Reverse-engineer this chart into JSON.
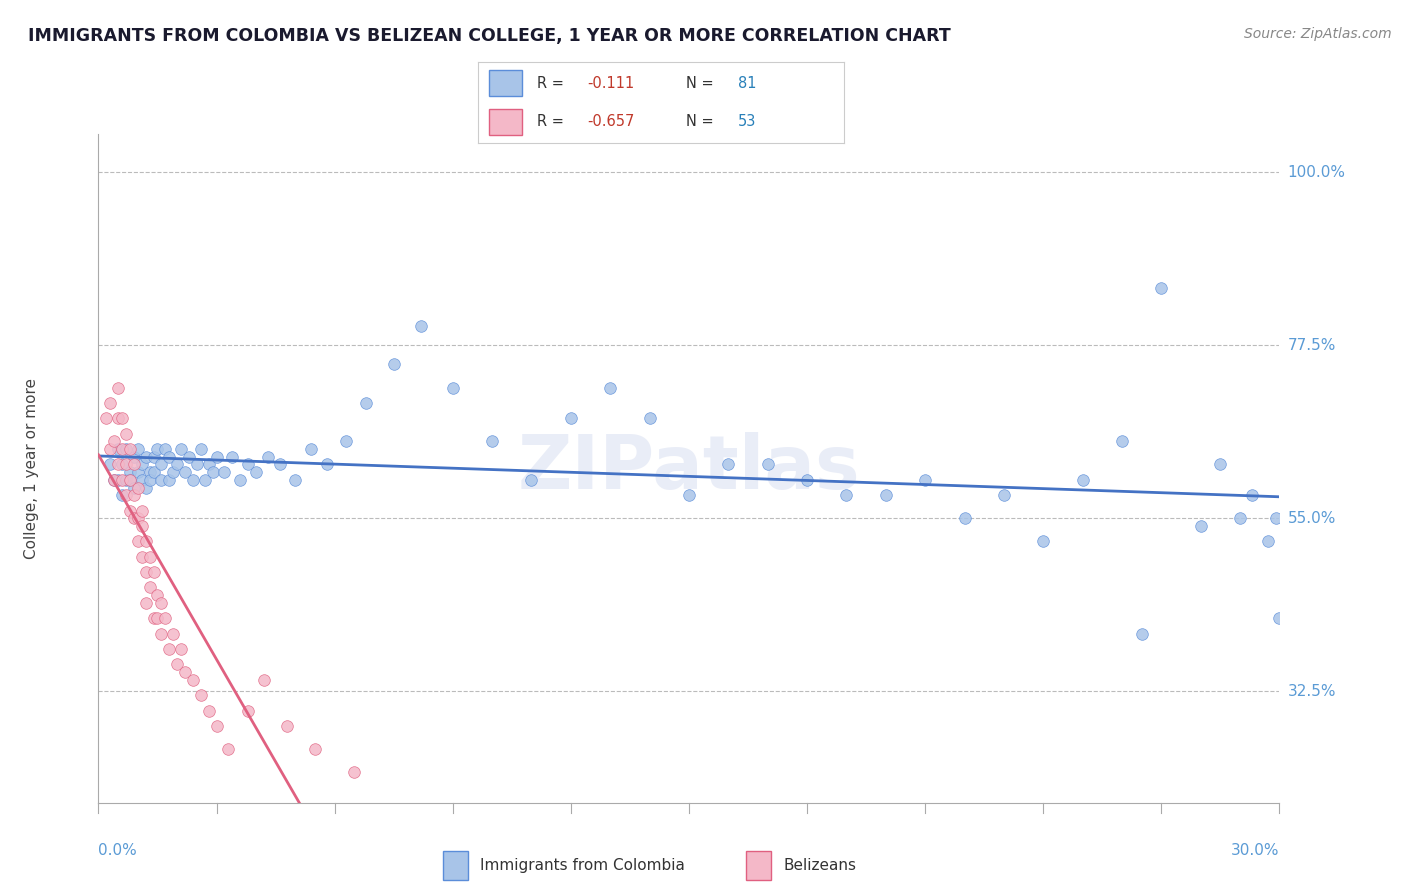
{
  "title": "IMMIGRANTS FROM COLOMBIA VS BELIZEAN COLLEGE, 1 YEAR OR MORE CORRELATION CHART",
  "source_text": "Source: ZipAtlas.com",
  "ylabel": "College, 1 year or more",
  "xlim": [
    0.0,
    0.3
  ],
  "ylim": [
    0.18,
    1.05
  ],
  "yticks": [
    0.325,
    0.55,
    0.775,
    1.0
  ],
  "ytick_labels": [
    "32.5%",
    "55.0%",
    "77.5%",
    "100.0%"
  ],
  "xtick_left_label": "0.0%",
  "xtick_right_label": "30.0%",
  "watermark": "ZIPatlas",
  "series": [
    {
      "label": "Immigrants from Colombia",
      "R": -0.111,
      "N": 81,
      "color": "#a8c4e8",
      "edge_color": "#5b8dd9",
      "trend_color": "#4472c4",
      "x": [
        0.003,
        0.004,
        0.005,
        0.005,
        0.006,
        0.006,
        0.007,
        0.007,
        0.008,
        0.008,
        0.009,
        0.009,
        0.01,
        0.01,
        0.011,
        0.011,
        0.012,
        0.012,
        0.013,
        0.013,
        0.014,
        0.014,
        0.015,
        0.016,
        0.016,
        0.017,
        0.018,
        0.018,
        0.019,
        0.02,
        0.021,
        0.022,
        0.023,
        0.024,
        0.025,
        0.026,
        0.027,
        0.028,
        0.029,
        0.03,
        0.032,
        0.034,
        0.036,
        0.038,
        0.04,
        0.043,
        0.046,
        0.05,
        0.054,
        0.058,
        0.063,
        0.068,
        0.075,
        0.082,
        0.09,
        0.1,
        0.11,
        0.12,
        0.13,
        0.14,
        0.15,
        0.16,
        0.17,
        0.18,
        0.19,
        0.2,
        0.21,
        0.22,
        0.23,
        0.24,
        0.25,
        0.26,
        0.265,
        0.27,
        0.28,
        0.285,
        0.29,
        0.293,
        0.297,
        0.299,
        0.3
      ],
      "y": [
        0.62,
        0.6,
        0.64,
        0.6,
        0.58,
        0.62,
        0.6,
        0.64,
        0.61,
        0.6,
        0.63,
        0.59,
        0.61,
        0.64,
        0.6,
        0.62,
        0.59,
        0.63,
        0.61,
        0.6,
        0.63,
        0.61,
        0.64,
        0.6,
        0.62,
        0.64,
        0.6,
        0.63,
        0.61,
        0.62,
        0.64,
        0.61,
        0.63,
        0.6,
        0.62,
        0.64,
        0.6,
        0.62,
        0.61,
        0.63,
        0.61,
        0.63,
        0.6,
        0.62,
        0.61,
        0.63,
        0.62,
        0.6,
        0.64,
        0.62,
        0.65,
        0.7,
        0.75,
        0.8,
        0.72,
        0.65,
        0.6,
        0.68,
        0.72,
        0.68,
        0.58,
        0.62,
        0.62,
        0.6,
        0.58,
        0.58,
        0.6,
        0.55,
        0.58,
        0.52,
        0.6,
        0.65,
        0.4,
        0.85,
        0.54,
        0.62,
        0.55,
        0.58,
        0.52,
        0.55,
        0.42
      ]
    },
    {
      "label": "Belizeans",
      "R": -0.657,
      "N": 53,
      "color": "#f4b8c8",
      "edge_color": "#e06080",
      "trend_color": "#e06080",
      "x": [
        0.002,
        0.003,
        0.003,
        0.004,
        0.004,
        0.005,
        0.005,
        0.005,
        0.006,
        0.006,
        0.006,
        0.007,
        0.007,
        0.007,
        0.008,
        0.008,
        0.008,
        0.009,
        0.009,
        0.009,
        0.01,
        0.01,
        0.01,
        0.011,
        0.011,
        0.011,
        0.012,
        0.012,
        0.012,
        0.013,
        0.013,
        0.014,
        0.014,
        0.015,
        0.015,
        0.016,
        0.016,
        0.017,
        0.018,
        0.019,
        0.02,
        0.021,
        0.022,
        0.024,
        0.026,
        0.028,
        0.03,
        0.033,
        0.038,
        0.042,
        0.048,
        0.055,
        0.065
      ],
      "y": [
        0.68,
        0.64,
        0.7,
        0.65,
        0.6,
        0.68,
        0.62,
        0.72,
        0.6,
        0.64,
        0.68,
        0.58,
        0.62,
        0.66,
        0.6,
        0.64,
        0.56,
        0.58,
        0.62,
        0.55,
        0.55,
        0.59,
        0.52,
        0.56,
        0.5,
        0.54,
        0.52,
        0.48,
        0.44,
        0.5,
        0.46,
        0.48,
        0.42,
        0.45,
        0.42,
        0.44,
        0.4,
        0.42,
        0.38,
        0.4,
        0.36,
        0.38,
        0.35,
        0.34,
        0.32,
        0.3,
        0.28,
        0.25,
        0.3,
        0.34,
        0.28,
        0.25,
        0.22
      ]
    }
  ],
  "legend_R_color": "#c0392b",
  "legend_N_color": "#2980b9",
  "background_color": "#ffffff",
  "grid_color": "#bbbbbb",
  "title_color": "#1a1a2e",
  "tick_label_color": "#5b9bd5"
}
